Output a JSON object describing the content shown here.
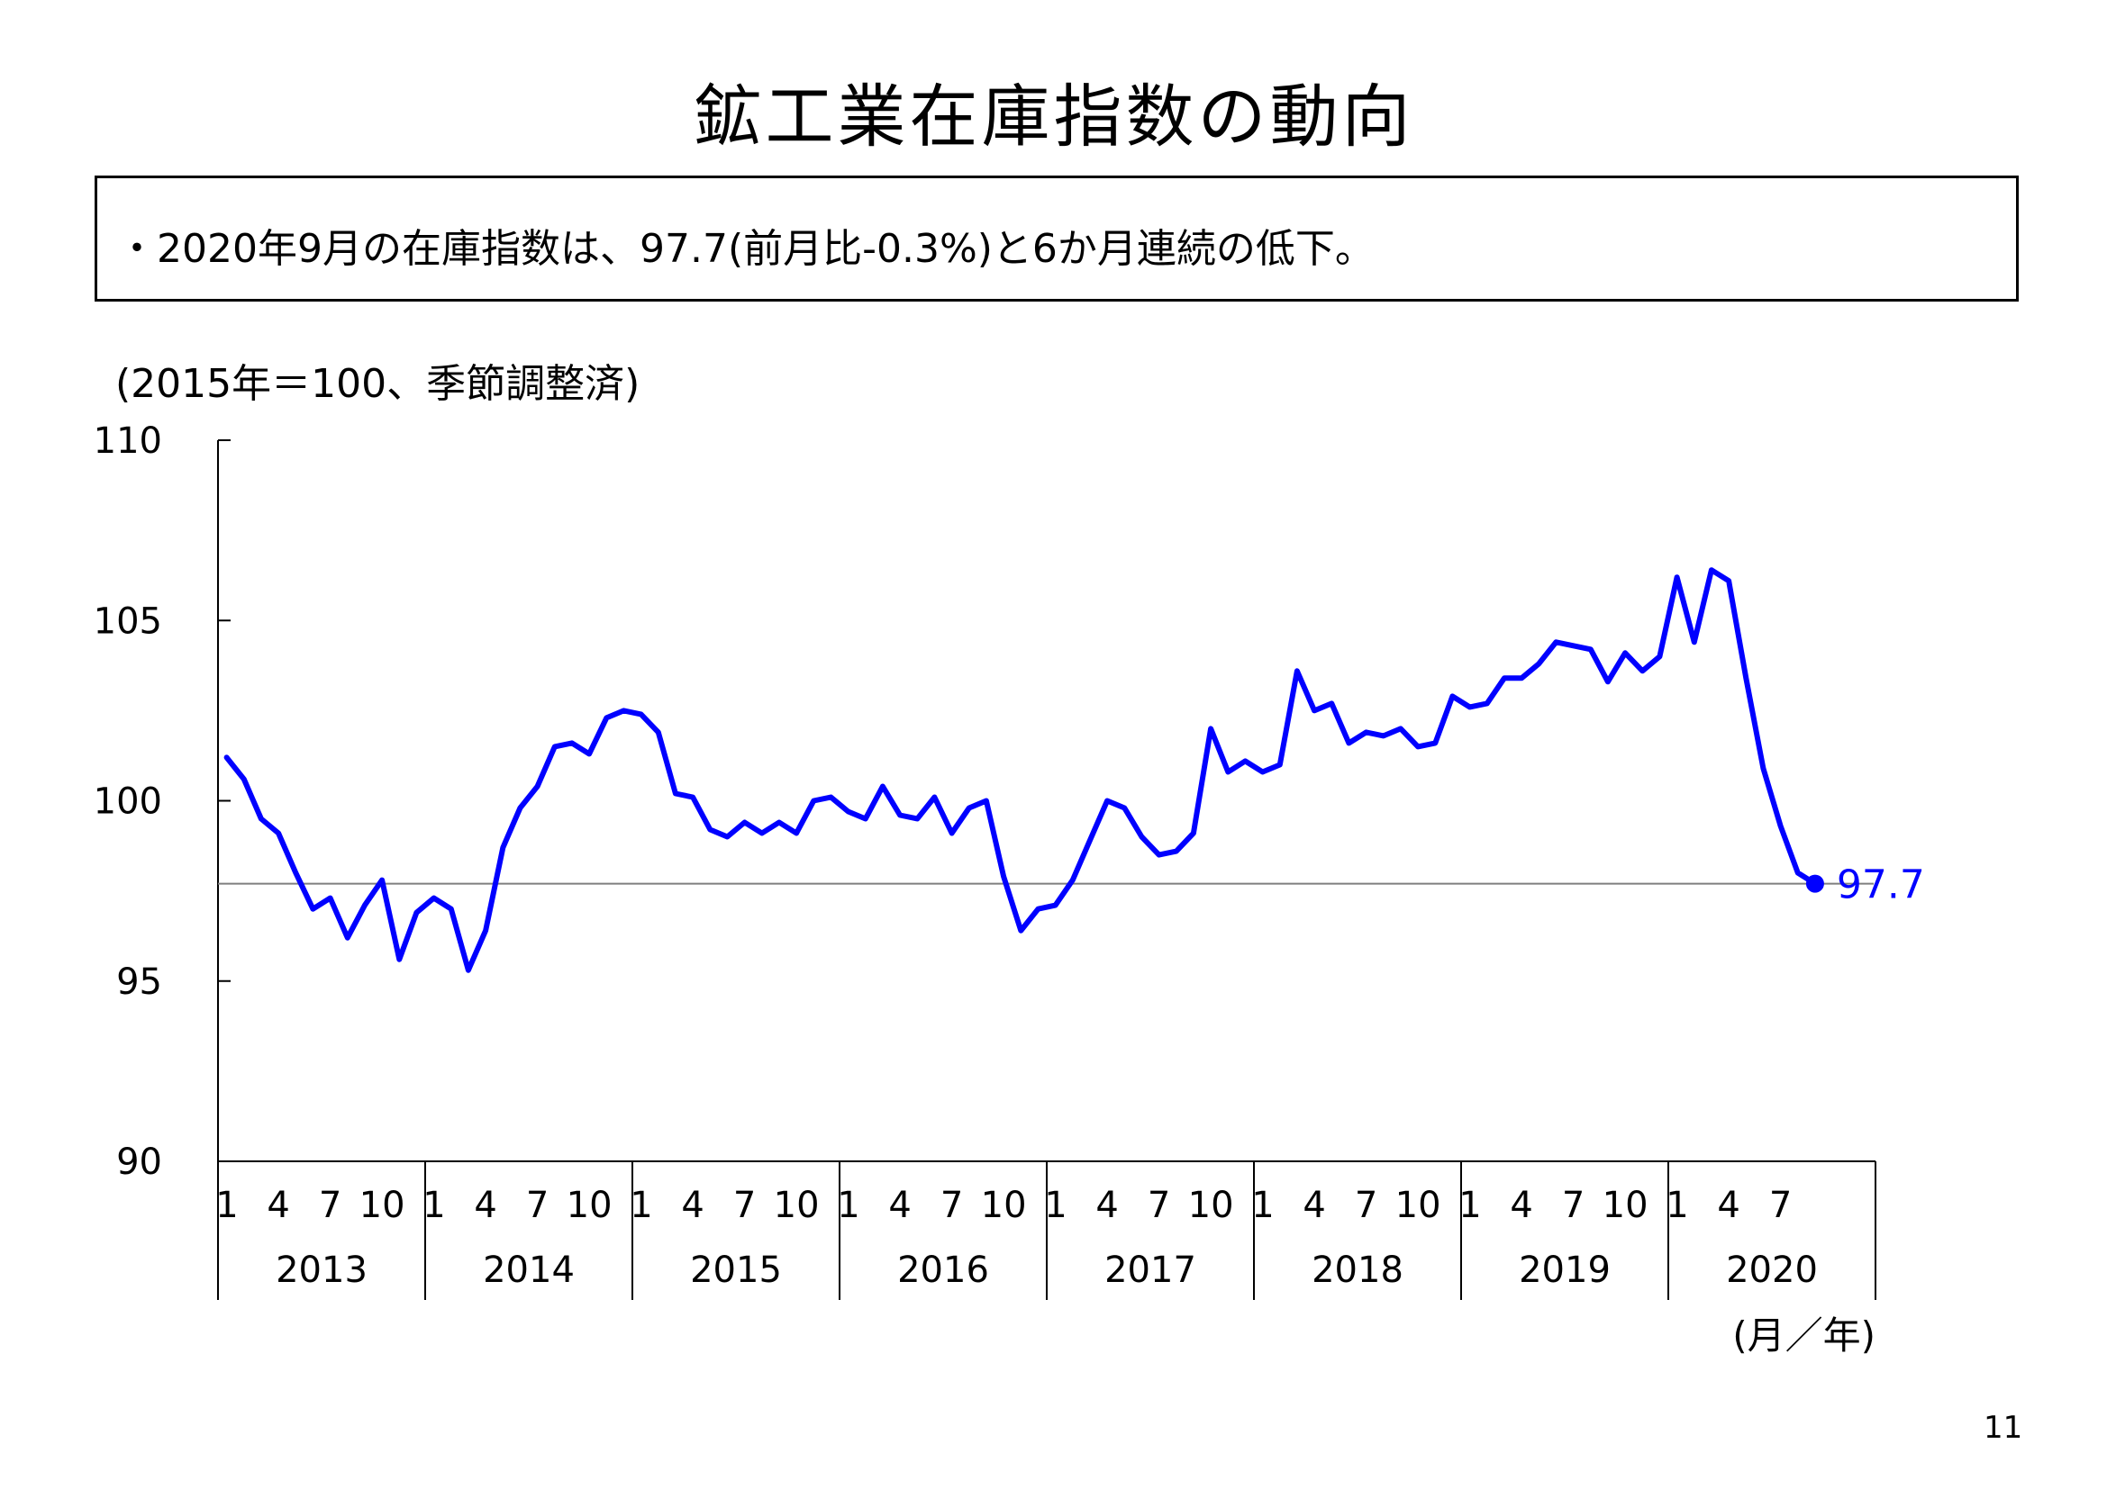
{
  "page": {
    "title": "鉱工業在庫指数の動向",
    "summary": "・2020年9月の在庫指数は、97.7(前月比-0.3%)と6か月連続の低下。",
    "unit_note": "(2015年＝100、季節調整済)",
    "page_number": "11"
  },
  "colors": {
    "series_line": "#0000ff",
    "reference_line": "#7f7f7f",
    "axis": "#000000",
    "label_text": "#0000ff"
  },
  "chart_data": {
    "type": "line",
    "title": "鉱工業在庫指数の動向",
    "ylabel": "(2015年＝100、季節調整済)",
    "xlabel": "(月／年)",
    "ylim": [
      90,
      110
    ],
    "y_ticks": [
      90,
      95,
      100,
      105,
      110
    ],
    "grid": false,
    "legend": "none",
    "month_tick_labels": [
      "1",
      "4",
      "7",
      "10"
    ],
    "years": [
      "2013",
      "2014",
      "2015",
      "2016",
      "2017",
      "2018",
      "2019",
      "2020"
    ],
    "reference_line": {
      "value": 97.7
    },
    "end_label": "97.7",
    "series": [
      {
        "start": "2013-01",
        "values": [
          101.2,
          100.6,
          99.5,
          99.1,
          98.0,
          97.0,
          97.3,
          96.2,
          97.1,
          97.8,
          95.6,
          96.9,
          97.3,
          97.0,
          95.3,
          96.4,
          98.7,
          99.8,
          100.4,
          101.5,
          101.6,
          101.3,
          102.3,
          102.5,
          102.4,
          101.9,
          100.2,
          100.1,
          99.2,
          99.0,
          99.4,
          99.1,
          99.4,
          99.1,
          100.0,
          100.1,
          99.7,
          99.5,
          100.4,
          99.6,
          99.5,
          100.1,
          99.1,
          99.8,
          100.0,
          97.9,
          96.4,
          97.0,
          97.1,
          97.8,
          98.9,
          100.0,
          99.8,
          99.0,
          98.5,
          98.6,
          99.1,
          102.0,
          100.8,
          101.1,
          100.8,
          101.0,
          103.6,
          102.5,
          102.7,
          101.6,
          101.9,
          101.8,
          102.0,
          101.5,
          101.6,
          102.9,
          102.6,
          102.7,
          103.4,
          103.4,
          103.8,
          104.4,
          104.3,
          104.2,
          103.3,
          104.1,
          103.6,
          104.0,
          106.2,
          104.4,
          106.4,
          106.1,
          103.4,
          100.9,
          99.3,
          98.0,
          97.7
        ]
      }
    ]
  }
}
